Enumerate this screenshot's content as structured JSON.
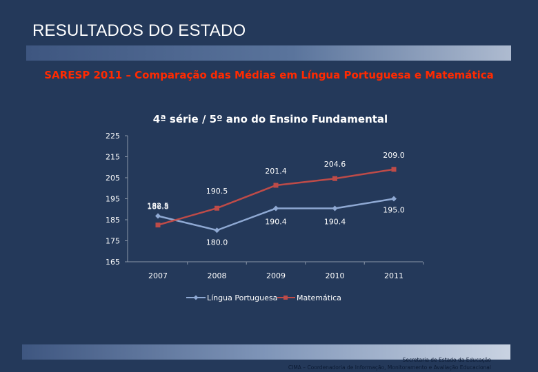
{
  "slide": {
    "title": "RESULTADOS DO ESTADO",
    "subtitle": "SARESP 2011 – Comparação das Médias em Língua Portuguesa e Matemática"
  },
  "footer": {
    "line1": "Secretaria de Estado da Educação",
    "line2": "CIMA – Coordenadoria de Informação, Monitoramento e Avaliação Educacional"
  },
  "colors": {
    "background": "#24395a",
    "title_text": "#ffffff",
    "subtitle_text": "#ff2a00",
    "chart_text": "#ffffff",
    "portuguesa": "#8fa9d3",
    "matematica": "#be4b48"
  },
  "chart_data": {
    "type": "line",
    "title": "4ª série / 5º ano do Ensino Fundamental",
    "xlabel": "",
    "ylabel": "",
    "categories": [
      "2007",
      "2008",
      "2009",
      "2010",
      "2011"
    ],
    "ylim": [
      165,
      225
    ],
    "yticks": [
      165,
      175,
      185,
      195,
      205,
      215,
      225
    ],
    "grid": false,
    "legend": "bottom",
    "series": [
      {
        "name": "Língua Portuguesa",
        "marker": "diamond",
        "values": [
          186.8,
          180.0,
          190.4,
          190.4,
          195.0
        ],
        "labels": [
          "186.8",
          "180.0",
          "190.4",
          "190.4",
          "195.0"
        ]
      },
      {
        "name": "Matemática",
        "marker": "square",
        "values": [
          182.5,
          190.5,
          201.4,
          204.6,
          209.0
        ],
        "labels": [
          "182.5",
          "190.5",
          "201.4",
          "204.6",
          "209.0"
        ]
      }
    ]
  }
}
